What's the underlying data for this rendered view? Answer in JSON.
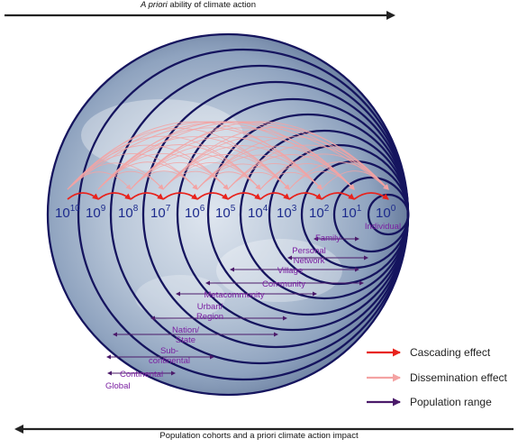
{
  "top_axis": {
    "label_prefix": "A priori",
    "label_rest": " ability of climate action"
  },
  "bottom_axis": {
    "label_prefix": "Population cohorts and a ",
    "label_italic": "a priori",
    "label_full": "Population cohorts and a priori climate action impact"
  },
  "powers": [
    {
      "base": "10",
      "exp": "10"
    },
    {
      "base": "10",
      "exp": "9"
    },
    {
      "base": "10",
      "exp": "8"
    },
    {
      "base": "10",
      "exp": "7"
    },
    {
      "base": "10",
      "exp": "6"
    },
    {
      "base": "10",
      "exp": "5"
    },
    {
      "base": "10",
      "exp": "4"
    },
    {
      "base": "10",
      "exp": "3"
    },
    {
      "base": "10",
      "exp": "2"
    },
    {
      "base": "10",
      "exp": "1"
    },
    {
      "base": "10",
      "exp": "0"
    }
  ],
  "cohorts": [
    {
      "label": "Individual"
    },
    {
      "label": "Family"
    },
    {
      "label": "Personal\nNetwork"
    },
    {
      "label": "Village"
    },
    {
      "label": "Community"
    },
    {
      "label": "Metacommunity"
    },
    {
      "label": "Urban/\nRegion"
    },
    {
      "label": "Nation/\nState"
    },
    {
      "label": "Sub-\ncontinental"
    },
    {
      "label": "Continental"
    },
    {
      "label": "Global"
    }
  ],
  "legend": [
    {
      "label": "Cascading effect",
      "color": "#e8231d"
    },
    {
      "label": "Dissemination effect",
      "color": "#f4a3a3"
    },
    {
      "label": "Population range",
      "color": "#4b1a6a"
    }
  ],
  "colors": {
    "circle": "#15145e",
    "power_text": "#1c2a8c",
    "cohort_text": "#7a1fa2",
    "cascade": "#e8231d",
    "dissemination": "#f4a3a3",
    "range": "#4b1a6a"
  }
}
